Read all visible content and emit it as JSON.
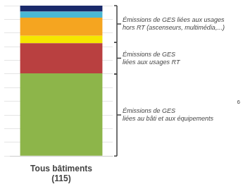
{
  "chart_data": {
    "type": "bar",
    "stacked": true,
    "categories": [
      "Tous bâtiments\n(115)"
    ],
    "series": [
      {
        "color": "#8db54a",
        "values": [
          55
        ]
      },
      {
        "color": "#b94040",
        "values": [
          20
        ]
      },
      {
        "color": "#f5e600",
        "values": [
          5
        ]
      },
      {
        "color": "#f5a520",
        "values": [
          12
        ]
      },
      {
        "color": "#4ab8d4",
        "values": [
          4
        ]
      },
      {
        "color": "#1a2a6b",
        "values": [
          4
        ]
      }
    ],
    "ylim": [
      0,
      100
    ],
    "yticks": [
      0,
      9.090909090909092,
      18.181818181818183,
      27.27272727272727,
      36.36363636363637,
      45.45454545454545,
      54.54545454545455,
      63.63636363636363,
      72.72727272727273,
      81.81818181818181,
      90.9090909090909,
      100
    ],
    "grid": true,
    "tick_labels": "x",
    "annotations": [
      {
        "text": "Émissions de GES liées aux usages\nhors RT (ascenseurs, multimédia,...)",
        "y_range": [
          75.5,
          100
        ]
      },
      {
        "text": "Émissions de GES\nliées aux usages RT",
        "y_range": [
          54.5,
          75.5
        ]
      },
      {
        "text": "Émissions de GES\nliées au bâti et aux équipements",
        "y_range": [
          0,
          54.5
        ]
      }
    ],
    "footnote": "6"
  }
}
